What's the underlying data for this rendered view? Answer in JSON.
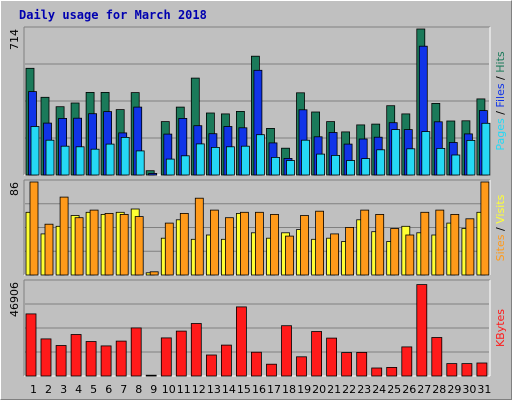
{
  "title": "Daily usage for March 2018",
  "colors": {
    "hits": "#1b7a5a",
    "files": "#1034e8",
    "pages": "#25d8f5",
    "visits": "#ffff33",
    "sites": "#ff9a1a",
    "kbytes": "#ff1a1a",
    "weekend_label": "#1b7a5a"
  },
  "chart_data": [
    {
      "type": "bar",
      "name": "hits-files-pages",
      "ymax_label": "714",
      "ylim": [
        0,
        714
      ],
      "legend": [
        {
          "key": "pages",
          "label": "Pages"
        },
        {
          "key": "sep1",
          "label": " / "
        },
        {
          "key": "files",
          "label": "Files"
        },
        {
          "key": "sep2",
          "label": " / "
        },
        {
          "key": "hits",
          "label": "Hits"
        }
      ],
      "series": [
        {
          "name": "Hits",
          "key": "hits",
          "values": [
            522,
            380,
            334,
            352,
            404,
            404,
            320,
            403,
            21,
            261,
            332,
            474,
            303,
            299,
            311,
            581,
            228,
            131,
            402,
            308,
            261,
            211,
            245,
            249,
            339,
            299,
            714,
            350,
            264,
            265,
            372
          ]
        },
        {
          "name": "Files",
          "key": "files",
          "values": [
            408,
            254,
            277,
            278,
            300,
            310,
            206,
            332,
            8,
            200,
            277,
            241,
            202,
            237,
            231,
            512,
            157,
            81,
            319,
            187,
            208,
            151,
            176,
            185,
            256,
            222,
            630,
            260,
            159,
            201,
            315
          ]
        },
        {
          "name": "Pages",
          "key": "pages",
          "values": [
            237,
            170,
            141,
            138,
            126,
            151,
            184,
            118,
            0,
            78,
            94,
            152,
            135,
            138,
            141,
            197,
            86,
            71,
            170,
            102,
            96,
            71,
            80,
            123,
            222,
            128,
            212,
            130,
            98,
            169,
            253
          ]
        }
      ]
    },
    {
      "type": "bar",
      "name": "visits-sites",
      "ymax_label": "86",
      "ylim": [
        0,
        86
      ],
      "legend": [
        {
          "key": "sites",
          "label": "Sites"
        },
        {
          "key": "sep",
          "label": " / "
        },
        {
          "key": "visits",
          "label": "Visits"
        }
      ],
      "series": [
        {
          "name": "Visits",
          "key": "visits",
          "values": [
            58,
            38,
            45,
            55,
            58,
            56,
            58,
            61,
            2,
            34,
            51,
            33,
            37,
            33,
            57,
            39,
            34,
            39,
            42,
            33,
            34,
            31,
            51,
            40,
            31,
            45,
            39,
            37,
            48,
            43,
            58
          ]
        },
        {
          "name": "Sites",
          "key": "sites",
          "values": [
            86,
            47,
            72,
            53,
            60,
            57,
            56,
            54,
            3,
            48,
            57,
            71,
            60,
            53,
            58,
            58,
            56,
            36,
            55,
            59,
            38,
            44,
            60,
            56,
            43,
            37,
            58,
            60,
            56,
            52,
            86
          ]
        }
      ]
    },
    {
      "type": "bar",
      "name": "kbytes",
      "ymax_label": "46906",
      "ylim": [
        0,
        46906
      ],
      "legend": [
        {
          "key": "kbytes",
          "label": "KBytes"
        }
      ],
      "series": [
        {
          "name": "KBytes",
          "key": "kbytes",
          "values": [
            31000,
            18500,
            15200,
            20700,
            17200,
            15000,
            17400,
            24000,
            400,
            19000,
            22400,
            26200,
            10500,
            15400,
            34500,
            11900,
            5900,
            25100,
            9600,
            22200,
            18900,
            11700,
            11800,
            4000,
            4300,
            14500,
            45600,
            19200,
            6200,
            6200,
            6500
          ]
        }
      ]
    }
  ],
  "days": [
    {
      "label": "1",
      "weekend": false
    },
    {
      "label": "2",
      "weekend": false
    },
    {
      "label": "3",
      "weekend": true
    },
    {
      "label": "4",
      "weekend": true
    },
    {
      "label": "5",
      "weekend": false
    },
    {
      "label": "6",
      "weekend": false
    },
    {
      "label": "7",
      "weekend": false
    },
    {
      "label": "8",
      "weekend": false
    },
    {
      "label": "9",
      "weekend": false
    },
    {
      "label": "10",
      "weekend": true
    },
    {
      "label": "11",
      "weekend": true
    },
    {
      "label": "12",
      "weekend": false
    },
    {
      "label": "13",
      "weekend": false
    },
    {
      "label": "14",
      "weekend": false
    },
    {
      "label": "15",
      "weekend": false
    },
    {
      "label": "16",
      "weekend": false
    },
    {
      "label": "17",
      "weekend": true
    },
    {
      "label": "18",
      "weekend": true
    },
    {
      "label": "19",
      "weekend": false
    },
    {
      "label": "20",
      "weekend": false
    },
    {
      "label": "21",
      "weekend": false
    },
    {
      "label": "22",
      "weekend": false
    },
    {
      "label": "23",
      "weekend": false
    },
    {
      "label": "24",
      "weekend": true
    },
    {
      "label": "25",
      "weekend": true
    },
    {
      "label": "26",
      "weekend": false
    },
    {
      "label": "27",
      "weekend": false
    },
    {
      "label": "28",
      "weekend": false
    },
    {
      "label": "29",
      "weekend": false
    },
    {
      "label": "30",
      "weekend": false
    },
    {
      "label": "31",
      "weekend": true
    }
  ]
}
